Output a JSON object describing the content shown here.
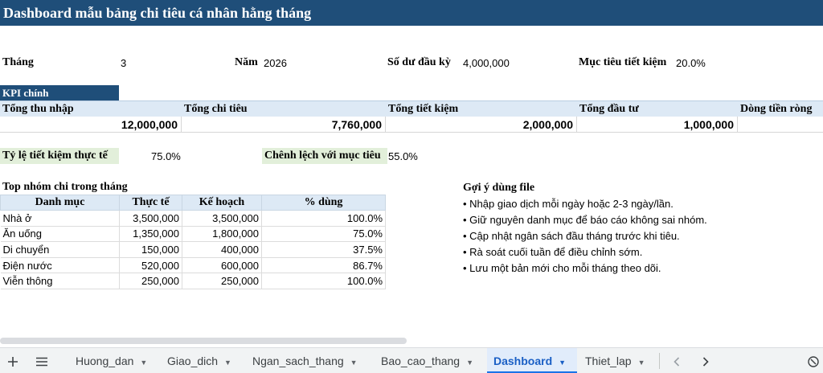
{
  "title": "Dashboard mẫu bảng chi tiêu cá nhân hằng tháng",
  "params": {
    "month_label": "Tháng",
    "month_value": "3",
    "year_label": "Năm",
    "year_value": "2026",
    "opening_label": "Số dư đầu kỳ",
    "opening_value": "4,000,000",
    "target_label": "Mục tiêu tiết kiệm",
    "target_value": "20.0%"
  },
  "kpi": {
    "section_label": "KPI chính",
    "headers": [
      "Tổng thu nhập",
      "Tổng chi tiêu",
      "Tổng tiết kiệm",
      "Tổng đầu tư",
      "Dòng tiền ròng"
    ],
    "values": [
      "12,000,000",
      "7,760,000",
      "2,000,000",
      "1,000,000",
      ""
    ]
  },
  "ratios": {
    "actual_label": "Tỷ lệ tiết kiệm thực tế",
    "actual_value": "75.0%",
    "diff_label": "Chênh lệch với mục tiêu",
    "diff_value": "55.0%"
  },
  "top_groups": {
    "title": "Top nhóm chi trong tháng",
    "headers": [
      "Danh mục",
      "Thực tế",
      "Kế hoạch",
      "% dùng"
    ],
    "rows": [
      [
        "Nhà ở",
        "3,500,000",
        "3,500,000",
        "100.0%"
      ],
      [
        "Ăn uống",
        "1,350,000",
        "1,800,000",
        "75.0%"
      ],
      [
        "Di chuyển",
        "150,000",
        "400,000",
        "37.5%"
      ],
      [
        "Điện nước",
        "520,000",
        "600,000",
        "86.7%"
      ],
      [
        "Viễn thông",
        "250,000",
        "250,000",
        "100.0%"
      ]
    ]
  },
  "tips": {
    "title": "Gợi ý dùng file",
    "items": [
      "• Nhập giao dịch mỗi ngày hoặc 2-3 ngày/lần.",
      "• Giữ nguyên danh mục để báo cáo không sai nhóm.",
      "• Cập nhật ngân sách đầu tháng trước khi tiêu.",
      "• Rà soát cuối tuần để điều chỉnh sớm.",
      "• Lưu một bản mới cho mỗi tháng theo dõi."
    ]
  },
  "tabbar": {
    "add_icon": "plus-icon",
    "menu_icon": "menu-icon",
    "tabs": [
      "Huong_dan",
      "Giao_dich",
      "Ngan_sach_thang",
      "Bao_cao_thang",
      "Dashboard",
      "Thiet_lap"
    ],
    "active_tab": "Dashboard",
    "prev_icon": "chevron-left-icon",
    "next_icon": "chevron-right-icon"
  },
  "colors": {
    "header_bg": "#1f4e79",
    "kpi_head_bg": "#dde9f5",
    "ratio_bg": "#e2efda",
    "active_tab": "#1a73e8"
  }
}
